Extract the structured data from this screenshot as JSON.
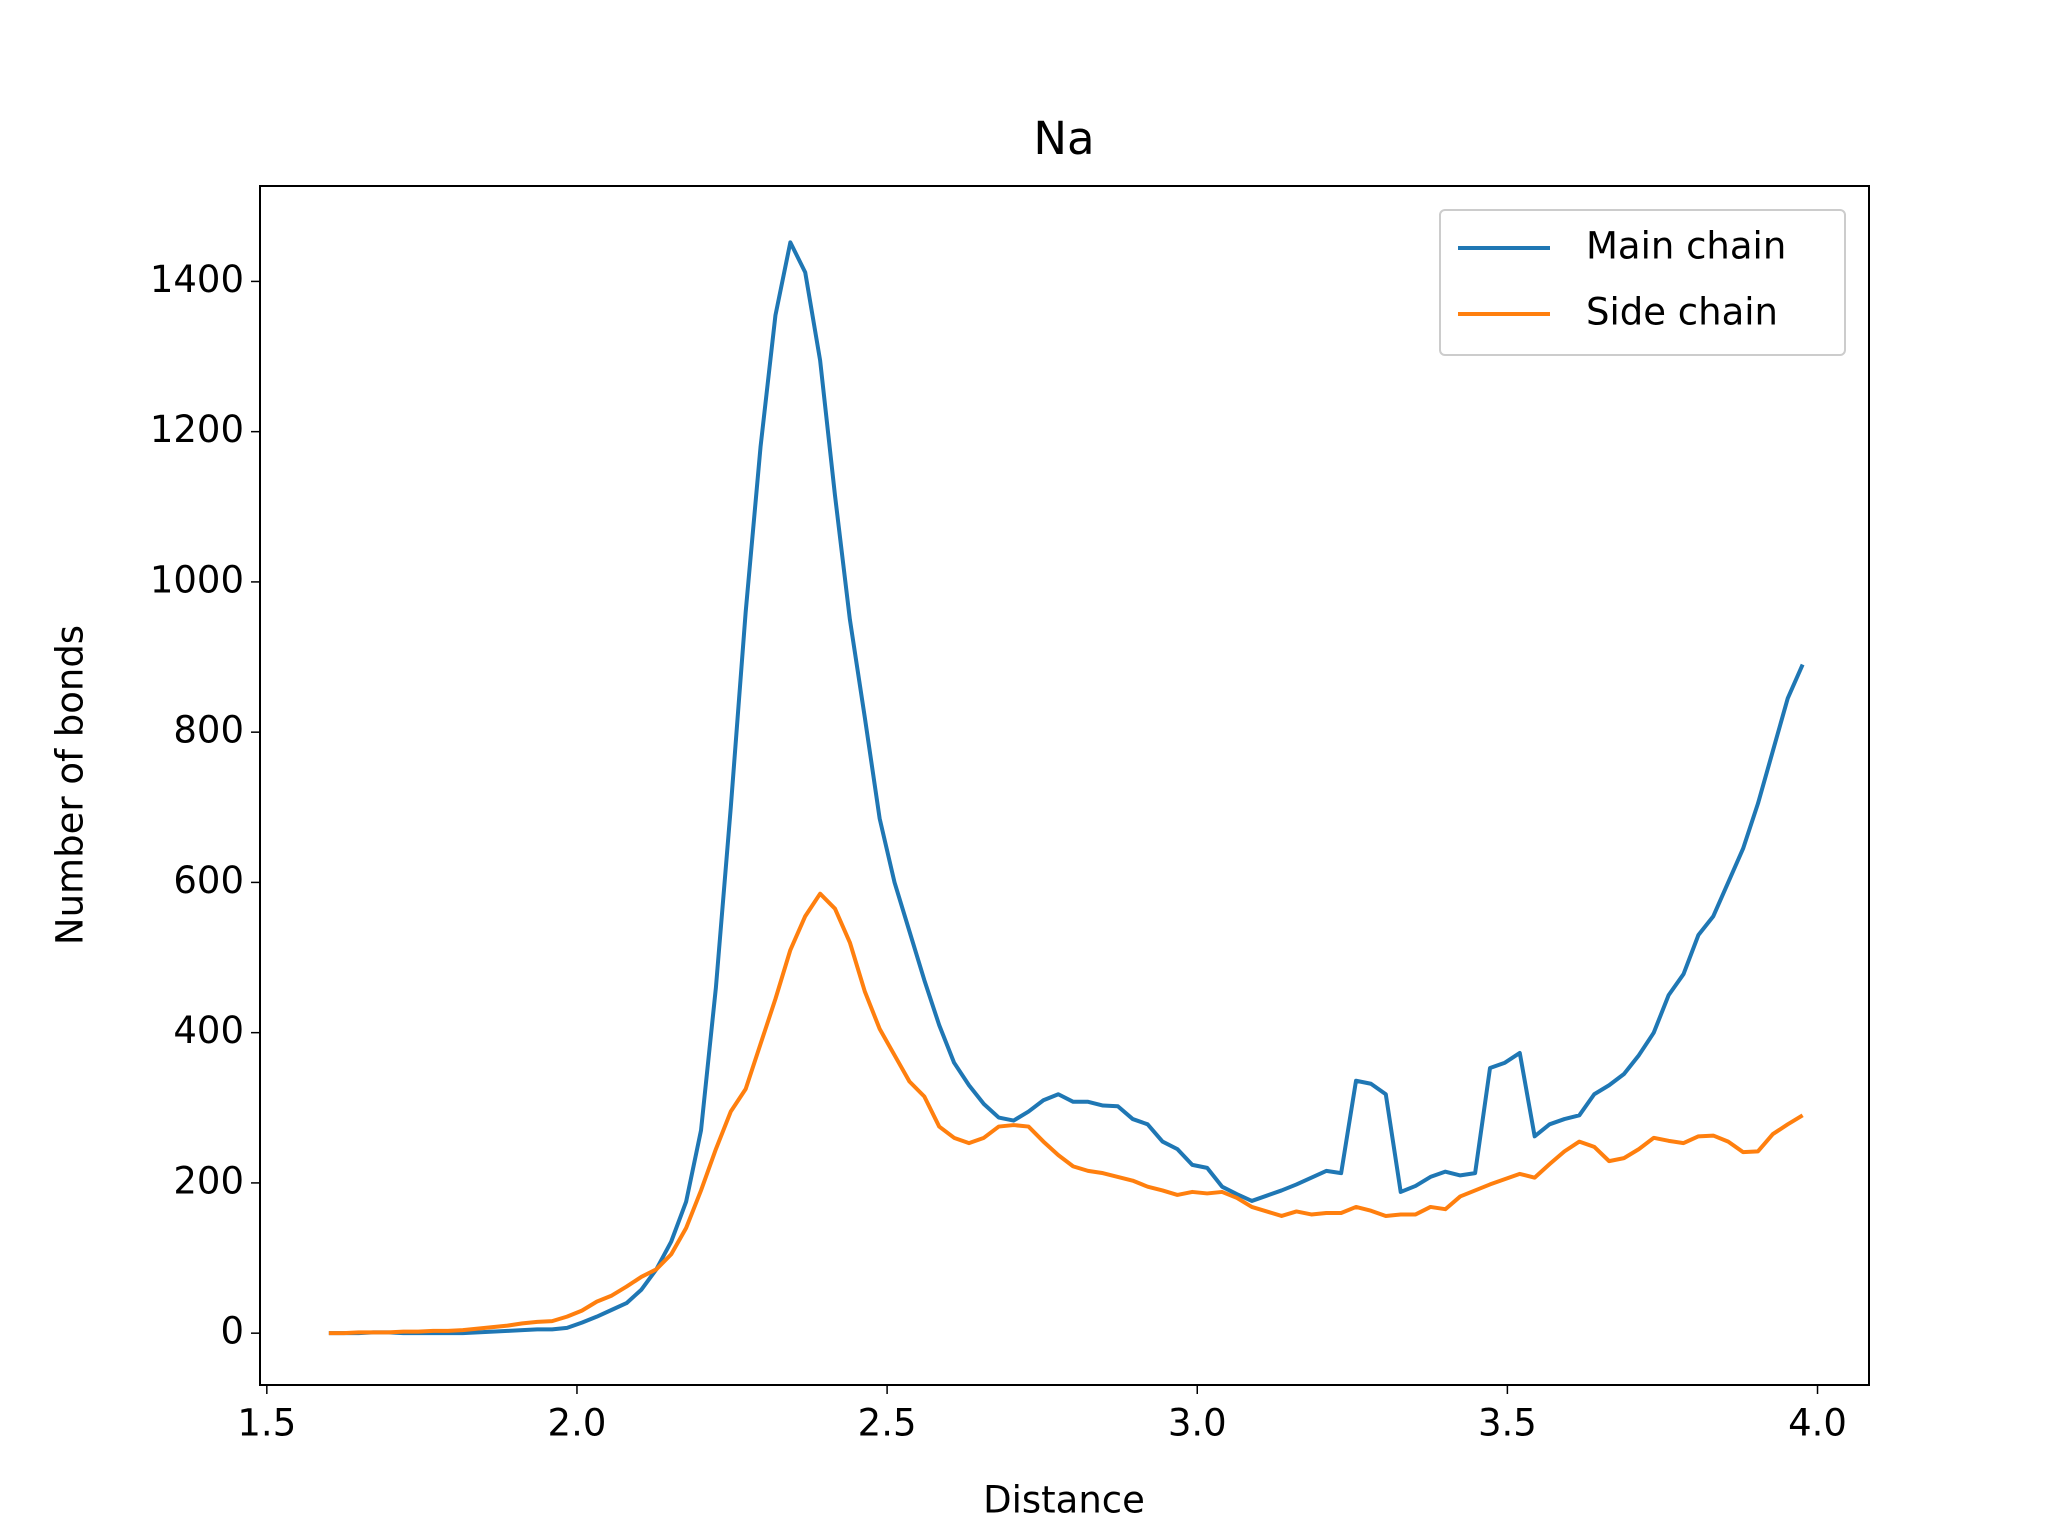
{
  "chart_data": {
    "type": "line",
    "title": "Na",
    "xlabel": "Distance",
    "ylabel": "Number of bonds",
    "x": [
      1.6,
      1.624,
      1.648,
      1.672,
      1.696,
      1.72,
      1.744,
      1.768,
      1.792,
      1.816,
      1.84,
      1.864,
      1.888,
      1.912,
      1.936,
      1.96,
      1.984,
      2.008,
      2.032,
      2.056,
      2.08,
      2.104,
      2.128,
      2.152,
      2.176,
      2.2,
      2.224,
      2.248,
      2.272,
      2.296,
      2.32,
      2.344,
      2.368,
      2.392,
      2.416,
      2.44,
      2.464,
      2.488,
      2.512,
      2.536,
      2.56,
      2.584,
      2.608,
      2.632,
      2.656,
      2.68,
      2.704,
      2.728,
      2.752,
      2.776,
      2.8,
      2.824,
      2.848,
      2.872,
      2.896,
      2.92,
      2.944,
      2.968,
      2.992,
      3.016,
      3.04,
      3.064,
      3.088,
      3.112,
      3.136,
      3.16,
      3.184,
      3.208,
      3.232,
      3.256,
      3.28,
      3.304,
      3.328,
      3.352,
      3.376,
      3.4,
      3.424,
      3.448,
      3.472,
      3.496,
      3.52,
      3.544,
      3.568,
      3.592,
      3.616,
      3.64,
      3.664,
      3.688,
      3.712,
      3.736,
      3.76,
      3.784,
      3.808,
      3.832,
      3.856,
      3.88,
      3.904,
      3.928,
      3.952,
      3.976
    ],
    "series": [
      {
        "name": "Main chain",
        "color": "#1f77b4",
        "values": [
          0,
          0,
          0,
          1,
          1,
          0,
          0,
          0,
          0,
          0,
          1,
          2,
          3,
          4,
          5,
          5,
          7,
          14,
          22,
          31,
          40,
          58,
          85,
          122,
          175,
          270,
          460,
          700,
          960,
          1180,
          1355,
          1452,
          1412,
          1295,
          1115,
          950,
          820,
          685,
          600,
          535,
          470,
          410,
          360,
          330,
          305,
          287,
          283,
          295,
          310,
          318,
          308,
          308,
          303,
          302,
          285,
          278,
          255,
          245,
          224,
          220,
          195,
          185,
          176,
          183,
          190,
          198,
          207,
          216,
          213,
          336,
          332,
          318,
          188,
          196,
          208,
          215,
          210,
          213,
          353,
          360,
          373,
          262,
          278,
          285,
          290,
          318,
          330,
          345,
          370,
          400,
          450,
          478,
          530,
          555,
          600,
          645,
          705,
          775,
          845,
          890
        ]
      },
      {
        "name": "Side chain",
        "color": "#ff7f0e",
        "values": [
          0,
          0,
          1,
          1,
          1,
          2,
          2,
          3,
          3,
          4,
          6,
          8,
          10,
          13,
          15,
          16,
          22,
          30,
          42,
          50,
          62,
          75,
          85,
          105,
          140,
          190,
          245,
          295,
          325,
          385,
          445,
          510,
          555,
          585,
          565,
          520,
          455,
          405,
          370,
          335,
          315,
          275,
          260,
          253,
          260,
          275,
          277,
          275,
          255,
          237,
          222,
          216,
          213,
          208,
          203,
          195,
          190,
          184,
          188,
          186,
          188,
          180,
          168,
          162,
          156,
          162,
          158,
          160,
          160,
          168,
          163,
          156,
          158,
          158,
          168,
          165,
          182,
          190,
          198,
          205,
          212,
          207,
          225,
          242,
          255,
          248,
          229,
          233,
          245,
          260,
          256,
          253,
          262,
          263,
          255,
          241,
          242,
          265,
          278,
          290
        ]
      }
    ],
    "xlim": [
      1.489,
      4.083
    ],
    "ylim": [
      -69,
      1527
    ],
    "xticks": [
      {
        "value": 1.5,
        "label": "1.5"
      },
      {
        "value": 2.0,
        "label": "2.0"
      },
      {
        "value": 2.5,
        "label": "2.5"
      },
      {
        "value": 3.0,
        "label": "3.0"
      },
      {
        "value": 3.5,
        "label": "3.5"
      },
      {
        "value": 4.0,
        "label": "4.0"
      }
    ],
    "yticks": [
      0,
      200,
      400,
      600,
      800,
      1000,
      1200,
      1400
    ],
    "legend": "upper right",
    "grid": false
  }
}
